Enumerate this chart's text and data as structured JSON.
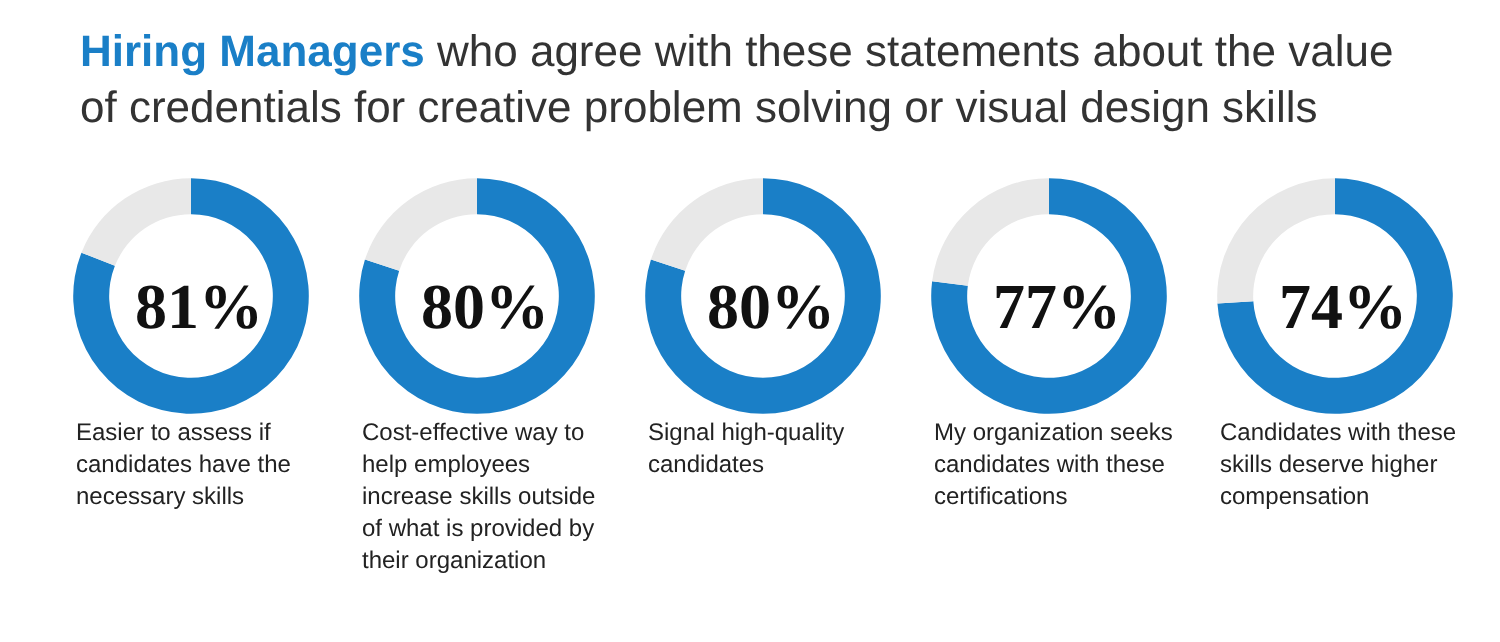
{
  "chart_data": [
    {
      "type": "other",
      "title": "Hiring Managers who agree with these statements about the value of credentials for creative problem solving or visual design skills"
    },
    {
      "type": "donut",
      "title": "Easier to assess if candidates have the necessary skills",
      "categories": [
        null,
        null
      ],
      "values": [
        81,
        19
      ],
      "colors": [
        "#1a7fc7",
        "#e8e8e8"
      ],
      "value_labels": [
        "81%",
        null
      ]
    },
    {
      "type": "donut",
      "title": "Cost-effective way to help employees increase skills outside of what is provided by their organization",
      "categories": [
        null,
        null
      ],
      "values": [
        80,
        20
      ],
      "colors": [
        "#1a7fc7",
        "#e8e8e8"
      ],
      "value_labels": [
        "80%",
        null
      ]
    },
    {
      "type": "donut",
      "title": "Signal high-quality candidates",
      "categories": [
        null,
        null
      ],
      "values": [
        80,
        20
      ],
      "colors": [
        "#1a7fc7",
        "#e8e8e8"
      ],
      "value_labels": [
        "80%",
        null
      ]
    },
    {
      "type": "donut",
      "title": "My organization seeks candidates with these certifications",
      "categories": [
        null,
        null
      ],
      "values": [
        77,
        23
      ],
      "colors": [
        "#1a7fc7",
        "#e8e8e8"
      ],
      "value_labels": [
        "77%",
        null
      ]
    },
    {
      "type": "donut",
      "title": "Candidates with these skills deserve higher compensation",
      "categories": [
        null,
        null
      ],
      "values": [
        74,
        26
      ],
      "colors": [
        "#1a7fc7",
        "#e8e8e8"
      ],
      "value_labels": [
        "74%",
        null
      ]
    }
  ]
}
